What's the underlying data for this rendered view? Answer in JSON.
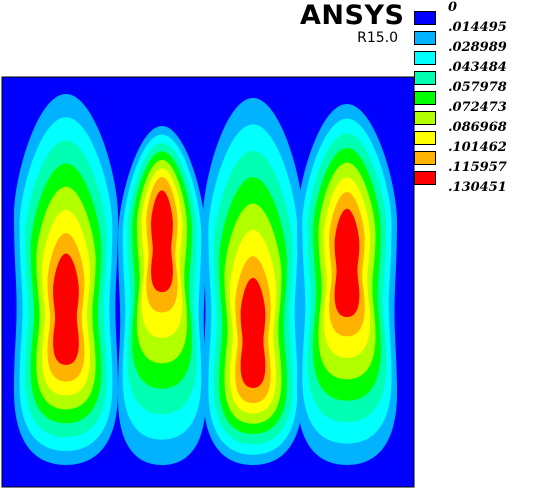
{
  "header": {
    "brand": "ANSYS",
    "release": "R15.0"
  },
  "legend": {
    "levels": [
      {
        "label": "0",
        "color": "#0000ff"
      },
      {
        "label": ".014495",
        "color": "#00b2ff"
      },
      {
        "label": ".028989",
        "color": "#00ffff"
      },
      {
        "label": ".043484",
        "color": "#00ffb2"
      },
      {
        "label": ".057978",
        "color": "#00ff00"
      },
      {
        "label": ".072473",
        "color": "#b2ff00"
      },
      {
        "label": ".086968",
        "color": "#ffff00"
      },
      {
        "label": ".101462",
        "color": "#ffb200"
      },
      {
        "label": ".115957",
        "color": "#ff0000"
      },
      {
        "label": ".130451",
        "color": "#ff0000"
      }
    ]
  },
  "contour": {
    "background_color": "#0000ff",
    "band_colors": [
      "#00b2ff",
      "#00ffff",
      "#00ffb2",
      "#00ff00",
      "#b2ff00",
      "#ffff00",
      "#ffb200",
      "#ff0000"
    ]
  }
}
